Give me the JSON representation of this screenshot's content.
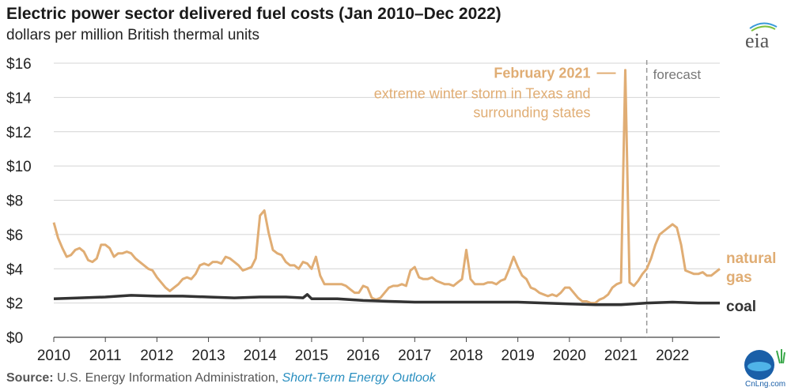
{
  "chart_data": {
    "type": "line",
    "title": "Electric power sector delivered fuel costs (Jan 2010–Dec 2022)",
    "subtitle": "dollars per million British thermal units",
    "ylabel": "",
    "xlabel": "",
    "ylim": [
      0,
      16
    ],
    "y_ticks": [
      "$0",
      "$2",
      "$4",
      "$6",
      "$8",
      "$10",
      "$12",
      "$14",
      "$16"
    ],
    "x_ticks": [
      "2010",
      "2011",
      "2012",
      "2013",
      "2014",
      "2015",
      "2016",
      "2017",
      "2018",
      "2019",
      "2020",
      "2021",
      "2022"
    ],
    "x_range": [
      "2010-01",
      "2022-12"
    ],
    "grid": true,
    "forecast_start": "2021-07",
    "forecast_label": "forecast",
    "annotation": {
      "title": "February 2021",
      "text_line1": "extreme winter storm in Texas and",
      "text_line2": "surrounding states",
      "x": "2021-02",
      "y": 15.6
    },
    "series": [
      {
        "name": "natural gas",
        "label_line1": "natural",
        "label_line2": "gas",
        "color": "#e0ad74",
        "points": [
          [
            "2010-01",
            6.7
          ],
          [
            "2010-02",
            5.8
          ],
          [
            "2010-03",
            5.2
          ],
          [
            "2010-04",
            4.7
          ],
          [
            "2010-05",
            4.8
          ],
          [
            "2010-06",
            5.1
          ],
          [
            "2010-07",
            5.2
          ],
          [
            "2010-08",
            5.0
          ],
          [
            "2010-09",
            4.5
          ],
          [
            "2010-10",
            4.4
          ],
          [
            "2010-11",
            4.6
          ],
          [
            "2010-12",
            5.4
          ],
          [
            "2011-01",
            5.4
          ],
          [
            "2011-02",
            5.2
          ],
          [
            "2011-03",
            4.7
          ],
          [
            "2011-04",
            4.9
          ],
          [
            "2011-05",
            4.9
          ],
          [
            "2011-06",
            5.0
          ],
          [
            "2011-07",
            4.9
          ],
          [
            "2011-08",
            4.6
          ],
          [
            "2011-09",
            4.4
          ],
          [
            "2011-10",
            4.2
          ],
          [
            "2011-11",
            4.0
          ],
          [
            "2011-12",
            3.9
          ],
          [
            "2012-01",
            3.5
          ],
          [
            "2012-02",
            3.2
          ],
          [
            "2012-03",
            2.9
          ],
          [
            "2012-04",
            2.7
          ],
          [
            "2012-05",
            2.9
          ],
          [
            "2012-06",
            3.1
          ],
          [
            "2012-07",
            3.4
          ],
          [
            "2012-08",
            3.5
          ],
          [
            "2012-09",
            3.4
          ],
          [
            "2012-10",
            3.7
          ],
          [
            "2012-11",
            4.2
          ],
          [
            "2012-12",
            4.3
          ],
          [
            "2013-01",
            4.2
          ],
          [
            "2013-02",
            4.4
          ],
          [
            "2013-03",
            4.4
          ],
          [
            "2013-04",
            4.3
          ],
          [
            "2013-05",
            4.7
          ],
          [
            "2013-06",
            4.6
          ],
          [
            "2013-07",
            4.4
          ],
          [
            "2013-08",
            4.2
          ],
          [
            "2013-09",
            3.9
          ],
          [
            "2013-10",
            4.0
          ],
          [
            "2013-11",
            4.1
          ],
          [
            "2013-12",
            4.6
          ],
          [
            "2014-01",
            7.1
          ],
          [
            "2014-02",
            7.4
          ],
          [
            "2014-03",
            6.1
          ],
          [
            "2014-04",
            5.1
          ],
          [
            "2014-05",
            4.9
          ],
          [
            "2014-06",
            4.8
          ],
          [
            "2014-07",
            4.4
          ],
          [
            "2014-08",
            4.2
          ],
          [
            "2014-09",
            4.2
          ],
          [
            "2014-10",
            4.0
          ],
          [
            "2014-11",
            4.4
          ],
          [
            "2014-12",
            4.3
          ],
          [
            "2015-01",
            4.0
          ],
          [
            "2015-02",
            4.7
          ],
          [
            "2015-03",
            3.6
          ],
          [
            "2015-04",
            3.1
          ],
          [
            "2015-05",
            3.1
          ],
          [
            "2015-06",
            3.1
          ],
          [
            "2015-07",
            3.1
          ],
          [
            "2015-08",
            3.1
          ],
          [
            "2015-09",
            3.0
          ],
          [
            "2015-10",
            2.8
          ],
          [
            "2015-11",
            2.6
          ],
          [
            "2015-12",
            2.6
          ],
          [
            "2016-01",
            3.0
          ],
          [
            "2016-02",
            2.9
          ],
          [
            "2016-03",
            2.3
          ],
          [
            "2016-04",
            2.2
          ],
          [
            "2016-05",
            2.3
          ],
          [
            "2016-06",
            2.6
          ],
          [
            "2016-07",
            2.9
          ],
          [
            "2016-08",
            3.0
          ],
          [
            "2016-09",
            3.0
          ],
          [
            "2016-10",
            3.1
          ],
          [
            "2016-11",
            3.0
          ],
          [
            "2016-12",
            3.9
          ],
          [
            "2017-01",
            4.1
          ],
          [
            "2017-02",
            3.5
          ],
          [
            "2017-03",
            3.4
          ],
          [
            "2017-04",
            3.4
          ],
          [
            "2017-05",
            3.5
          ],
          [
            "2017-06",
            3.3
          ],
          [
            "2017-07",
            3.2
          ],
          [
            "2017-08",
            3.1
          ],
          [
            "2017-09",
            3.1
          ],
          [
            "2017-10",
            3.0
          ],
          [
            "2017-11",
            3.2
          ],
          [
            "2017-12",
            3.4
          ],
          [
            "2018-01",
            5.1
          ],
          [
            "2018-02",
            3.4
          ],
          [
            "2018-03",
            3.1
          ],
          [
            "2018-04",
            3.1
          ],
          [
            "2018-05",
            3.1
          ],
          [
            "2018-06",
            3.2
          ],
          [
            "2018-07",
            3.2
          ],
          [
            "2018-08",
            3.1
          ],
          [
            "2018-09",
            3.3
          ],
          [
            "2018-10",
            3.4
          ],
          [
            "2018-11",
            4.0
          ],
          [
            "2018-12",
            4.7
          ],
          [
            "2019-01",
            4.1
          ],
          [
            "2019-02",
            3.6
          ],
          [
            "2019-03",
            3.4
          ],
          [
            "2019-04",
            2.9
          ],
          [
            "2019-05",
            2.8
          ],
          [
            "2019-06",
            2.6
          ],
          [
            "2019-07",
            2.5
          ],
          [
            "2019-08",
            2.4
          ],
          [
            "2019-09",
            2.5
          ],
          [
            "2019-10",
            2.4
          ],
          [
            "2019-11",
            2.6
          ],
          [
            "2019-12",
            2.9
          ],
          [
            "2020-01",
            2.9
          ],
          [
            "2020-02",
            2.6
          ],
          [
            "2020-03",
            2.3
          ],
          [
            "2020-04",
            2.1
          ],
          [
            "2020-05",
            2.1
          ],
          [
            "2020-06",
            2.0
          ],
          [
            "2020-07",
            2.0
          ],
          [
            "2020-08",
            2.2
          ],
          [
            "2020-09",
            2.3
          ],
          [
            "2020-10",
            2.5
          ],
          [
            "2020-11",
            2.9
          ],
          [
            "2020-12",
            3.1
          ],
          [
            "2021-01",
            3.2
          ],
          [
            "2021-02",
            15.6
          ],
          [
            "2021-03",
            3.2
          ],
          [
            "2021-04",
            3.0
          ],
          [
            "2021-05",
            3.3
          ],
          [
            "2021-06",
            3.7
          ],
          [
            "2021-07",
            4.0
          ],
          [
            "2021-08",
            4.6
          ],
          [
            "2021-09",
            5.4
          ],
          [
            "2021-10",
            6.0
          ],
          [
            "2021-11",
            6.2
          ],
          [
            "2021-12",
            6.4
          ],
          [
            "2022-01",
            6.6
          ],
          [
            "2022-02",
            6.4
          ],
          [
            "2022-03",
            5.4
          ],
          [
            "2022-04",
            3.9
          ],
          [
            "2022-05",
            3.8
          ],
          [
            "2022-06",
            3.7
          ],
          [
            "2022-07",
            3.7
          ],
          [
            "2022-08",
            3.8
          ],
          [
            "2022-09",
            3.6
          ],
          [
            "2022-10",
            3.6
          ],
          [
            "2022-11",
            3.8
          ],
          [
            "2022-12",
            4.0
          ]
        ]
      },
      {
        "name": "coal",
        "label_line1": "coal",
        "label_line2": "",
        "color": "#333333",
        "points": [
          [
            "2010-01",
            2.25
          ],
          [
            "2010-07",
            2.3
          ],
          [
            "2011-01",
            2.35
          ],
          [
            "2011-07",
            2.45
          ],
          [
            "2012-01",
            2.4
          ],
          [
            "2012-07",
            2.4
          ],
          [
            "2013-01",
            2.35
          ],
          [
            "2013-07",
            2.3
          ],
          [
            "2014-01",
            2.35
          ],
          [
            "2014-07",
            2.35
          ],
          [
            "2014-11",
            2.3
          ],
          [
            "2014-12",
            2.5
          ],
          [
            "2015-01",
            2.25
          ],
          [
            "2015-07",
            2.25
          ],
          [
            "2016-01",
            2.15
          ],
          [
            "2016-07",
            2.1
          ],
          [
            "2017-01",
            2.05
          ],
          [
            "2017-07",
            2.05
          ],
          [
            "2018-01",
            2.05
          ],
          [
            "2018-07",
            2.05
          ],
          [
            "2019-01",
            2.05
          ],
          [
            "2019-07",
            2.0
          ],
          [
            "2020-01",
            1.95
          ],
          [
            "2020-07",
            1.9
          ],
          [
            "2021-01",
            1.9
          ],
          [
            "2021-07",
            2.0
          ],
          [
            "2022-01",
            2.05
          ],
          [
            "2022-07",
            2.0
          ],
          [
            "2022-12",
            2.0
          ]
        ]
      }
    ]
  },
  "logo_text": "eia",
  "source": {
    "label": "Source:",
    "org": "U.S. Energy Information Administration,",
    "publication": "Short-Term Energy Outlook"
  },
  "watermark_text": "CnLng.com"
}
